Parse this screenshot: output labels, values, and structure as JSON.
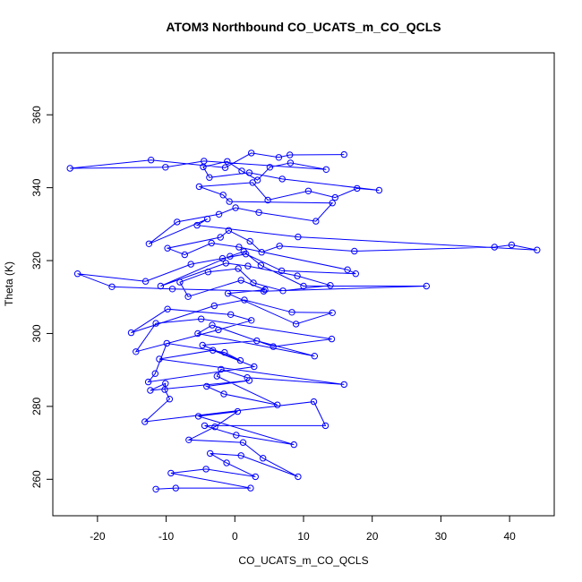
{
  "chart_data": {
    "type": "line",
    "title": "ATOM3 Northbound CO_UCATS_m_CO_QCLS",
    "xlabel": "CO_UCATS_m_CO_QCLS",
    "ylabel": "Theta (K)",
    "xlim": [
      -26.5,
      46.5
    ],
    "ylim": [
      250,
      377
    ],
    "xticks": [
      -20,
      -10,
      0,
      10,
      20,
      30,
      40
    ],
    "yticks": [
      260,
      280,
      300,
      320,
      340,
      360
    ],
    "grid": false,
    "legend": "none",
    "series_color": "#0000ff",
    "markers": "open-circle",
    "series": [
      {
        "x": [
          -11.5,
          -8.6,
          2.3,
          -9.3,
          -4.2,
          3.0,
          -1.2,
          -3.6,
          0.9,
          9.2,
          4.1,
          1.2,
          -6.7,
          -2.9,
          0.4,
          -5.3,
          8.6,
          0.2,
          -4.4,
          13.2,
          11.5,
          -13.1,
          -9.5,
          -10.2,
          -10.1,
          -12.3,
          2.1,
          -4.1,
          -1.6,
          6.2,
          -2.6,
          -2.0,
          1.8,
          15.9,
          -11.0,
          -3.2,
          2.8,
          -12.6,
          -11.6,
          -9.9,
          -1.5,
          0.8,
          -4.7,
          3.2,
          11.6,
          -5.4,
          -3.3,
          5.6,
          14.1,
          -4.9,
          -11.5,
          -14.4,
          -2.4,
          2.4,
          -0.6,
          -9.8,
          -15.1,
          -3.0,
          1.4,
          8.3,
          14.2,
          8.9,
          -1.0,
          4.4,
          0.9,
          -6.8,
          -8.0,
          -3.9,
          0.5,
          2.7,
          7.0,
          13.9,
          9.1,
          1.9,
          -1.3,
          -10.8,
          -0.7,
          1.3,
          3.8,
          10.0,
          27.9,
          4.2,
          -9.1,
          -17.9,
          -22.9,
          -13.0,
          -6.4,
          -1.8,
          1.6,
          6.8,
          17.6,
          16.4,
          0.6,
          -3.4,
          -7.3,
          -9.8,
          -2.1,
          -0.9,
          2.2,
          3.9,
          6.5,
          17.4,
          37.8,
          40.3,
          44.0,
          9.2,
          -5.5,
          -4.0,
          -12.5,
          -8.4,
          -2.3,
          0.1,
          3.5,
          11.8,
          14.2,
          -0.8,
          -1.7,
          -5.2,
          2.6,
          4.8,
          10.7,
          14.6,
          17.8,
          21.0,
          6.9,
          2.1,
          -3.7,
          -4.6,
          -1.1,
          1.0,
          3.3,
          5.1,
          8.1,
          13.3,
          -4.5,
          -10.1,
          -24.0,
          -12.2,
          -1.4,
          2.4,
          6.4,
          8.0,
          15.9
        ],
        "y": [
          257.3,
          257.6,
          257.6,
          261.7,
          262.8,
          260.7,
          264.5,
          267.1,
          266.5,
          260.7,
          265.8,
          270.1,
          270.8,
          274.4,
          278.6,
          277.3,
          269.5,
          272.1,
          274.7,
          274.7,
          281.3,
          275.8,
          282.0,
          284.6,
          286.3,
          284.4,
          287.1,
          285.5,
          283.4,
          280.4,
          288.3,
          290.2,
          287.9,
          286.0,
          293.0,
          295.4,
          290.9,
          286.7,
          289.0,
          297.3,
          294.8,
          292.6,
          296.8,
          298.0,
          293.8,
          300.0,
          302.3,
          296.4,
          298.5,
          304.0,
          302.8,
          295.0,
          301.0,
          303.6,
          305.2,
          306.7,
          300.2,
          307.6,
          309.2,
          305.8,
          305.7,
          302.6,
          311.0,
          312.0,
          314.6,
          310.1,
          314.1,
          316.9,
          317.8,
          313.9,
          311.7,
          313.2,
          315.8,
          318.5,
          319.3,
          313.0,
          321.2,
          322.5,
          318.7,
          313.0,
          313.0,
          311.6,
          312.2,
          312.8,
          316.4,
          314.3,
          319.0,
          320.6,
          321.8,
          317.2,
          316.4,
          317.5,
          323.7,
          324.8,
          321.6,
          323.4,
          326.4,
          328.3,
          325.3,
          322.3,
          324.0,
          322.6,
          323.7,
          324.3,
          322.9,
          326.5,
          329.7,
          331.4,
          324.6,
          330.6,
          332.7,
          334.5,
          333.2,
          330.8,
          335.8,
          336.2,
          338.0,
          340.3,
          341.4,
          336.6,
          339.1,
          337.3,
          339.8,
          339.3,
          342.4,
          344.1,
          342.8,
          345.7,
          347.2,
          344.6,
          342.1,
          345.6,
          346.8,
          345.0,
          347.3,
          345.6,
          345.3,
          347.6,
          345.5,
          349.5,
          348.3,
          349.0,
          349.1
        ]
      }
    ]
  }
}
